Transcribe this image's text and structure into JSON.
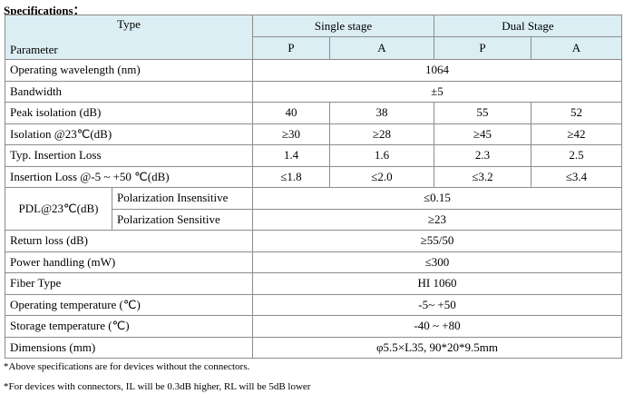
{
  "header": {
    "title": "Specifications："
  },
  "table": {
    "type_label": "Type",
    "parameter_label": "Parameter",
    "groups": [
      "Single stage",
      "Dual Stage"
    ],
    "subcolumns": [
      "P",
      "A",
      "P",
      "A"
    ],
    "rows": [
      {
        "label": "Operating wavelength (nm)",
        "values": [
          "1064"
        ]
      },
      {
        "label": "Bandwidth",
        "values": [
          "±5"
        ]
      },
      {
        "label": "Peak isolation (dB)",
        "values": [
          "40",
          "38",
          "55",
          "52"
        ]
      },
      {
        "label": "Isolation @23℃(dB)",
        "values": [
          "≥30",
          "≥28",
          "≥45",
          "≥42"
        ]
      },
      {
        "label": "Typ. Insertion Loss",
        "values": [
          "1.4",
          "1.6",
          "2.3",
          "2.5"
        ]
      },
      {
        "label": "Insertion Loss @-5 ~ +50 ℃(dB)",
        "values": [
          "≤1.8",
          "≤2.0",
          "≤3.2",
          "≤3.4"
        ]
      },
      {
        "label": "PDL@23℃(dB)",
        "sub": [
          {
            "label": "Polarization Insensitive",
            "value": "≤0.15"
          },
          {
            "label": "Polarization Sensitive",
            "value": "≥23"
          }
        ]
      },
      {
        "label": "Return loss (dB)",
        "values": [
          "≥55/50"
        ]
      },
      {
        "label": "Power handling (mW)",
        "values": [
          "≤300"
        ]
      },
      {
        "label": "Fiber Type",
        "values": [
          "HI 1060"
        ]
      },
      {
        "label": "Operating temperature (℃)",
        "values": [
          "-5~ +50"
        ]
      },
      {
        "label": "Storage temperature (℃)",
        "values": [
          "-40 ~ +80"
        ]
      },
      {
        "label": "Dimensions (mm)",
        "values": [
          "φ5.5×L35, 90*20*9.5mm"
        ]
      }
    ]
  },
  "footnotes": [
    "*Above specifications are for devices without the connectors.",
    "*For devices with connectors, IL will be 0.3dB higher, RL will be 5dB lower"
  ]
}
